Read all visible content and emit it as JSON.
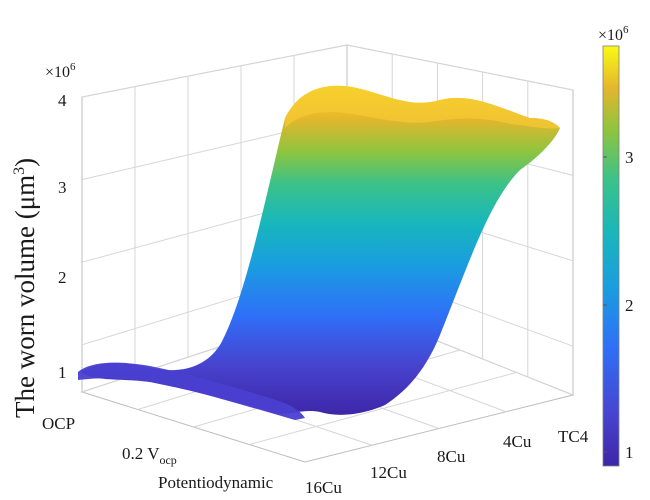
{
  "chart_data": {
    "type": "surface",
    "zlabel": "The worn volume (μm",
    "zlabel_superscript": "3",
    "zlabel_suffix": ")",
    "z_scale_text": "×10",
    "z_scale_exponent": "6",
    "zlim": [
      0.8,
      4.0
    ],
    "z_ticks": [
      "1",
      "2",
      "3",
      "4"
    ],
    "x_axis_ticks": [
      "OCP",
      "0.2 V",
      "Potentiodynamic"
    ],
    "x_tick_subscript": "ocp",
    "y_axis_ticks": [
      "16Cu",
      "12Cu",
      "8Cu",
      "4Cu",
      "TC4"
    ],
    "colorbar": {
      "scale_text": "×10",
      "scale_exponent": "6",
      "ticks": [
        "1",
        "2",
        "3"
      ],
      "range": [
        0.85,
        3.85
      ],
      "colormap": "parula"
    },
    "data_note_series": [
      {
        "condition": "OCP",
        "values": [
          0.95,
          1.1,
          3.7,
          3.8,
          3.7
        ]
      },
      {
        "condition": "0.2 Vocp",
        "values": [
          0.9,
          1.0,
          3.6,
          3.75,
          3.65
        ]
      },
      {
        "condition": "Potentiodynamic",
        "values": [
          0.85,
          0.95,
          3.55,
          3.7,
          3.6
        ]
      }
    ],
    "grid": true
  }
}
